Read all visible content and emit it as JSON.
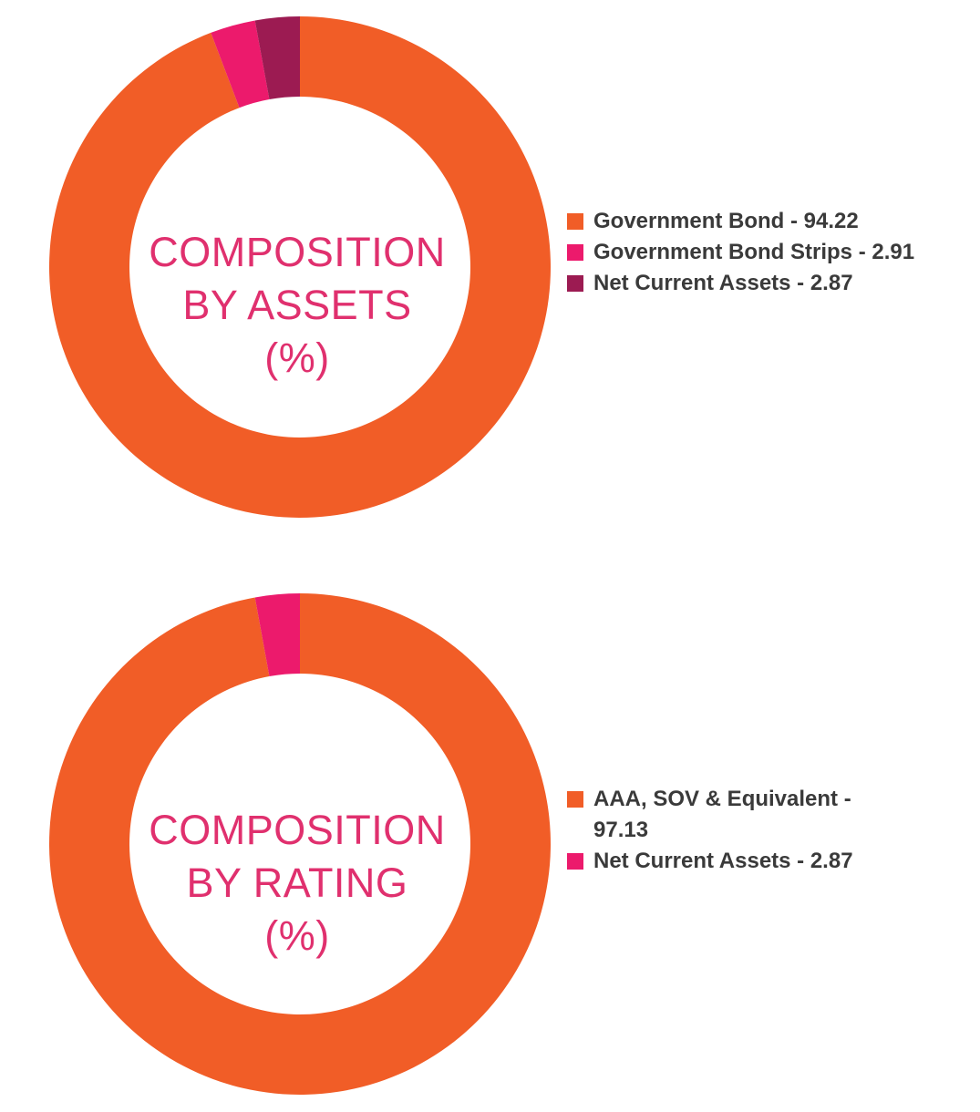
{
  "chart_data": [
    {
      "type": "pie",
      "variant": "donut",
      "title_lines": [
        "COMPOSITION",
        "BY ASSETS",
        "(%)"
      ],
      "slices": [
        {
          "label": "Government Bond",
          "value": 94.22,
          "color": "#f15d27",
          "legend_lines": [
            "Government Bond - 94.22"
          ]
        },
        {
          "label": "Government Bond Strips",
          "value": 2.91,
          "color": "#ec1a6c",
          "legend_lines": [
            "Government Bond Strips - 2.91"
          ]
        },
        {
          "label": "Net Current Assets",
          "value": 2.87,
          "color": "#9c1b52",
          "legend_lines": [
            "Net Current Assets - 2.87"
          ]
        }
      ],
      "legend_position": "right"
    },
    {
      "type": "pie",
      "variant": "donut",
      "title_lines": [
        "COMPOSITION",
        "BY RATING",
        "(%)"
      ],
      "slices": [
        {
          "label": "AAA, SOV & Equivalent",
          "value": 97.13,
          "color": "#f15d27",
          "legend_lines": [
            "AAA, SOV & Equivalent -",
            "97.13"
          ]
        },
        {
          "label": "Net Current Assets",
          "value": 2.87,
          "color": "#ec1a6c",
          "legend_lines": [
            "Net Current Assets - 2.87"
          ]
        }
      ],
      "legend_position": "right"
    }
  ],
  "colors": {
    "title_text": "#e0306e",
    "legend_text": "#3a3a3a"
  }
}
